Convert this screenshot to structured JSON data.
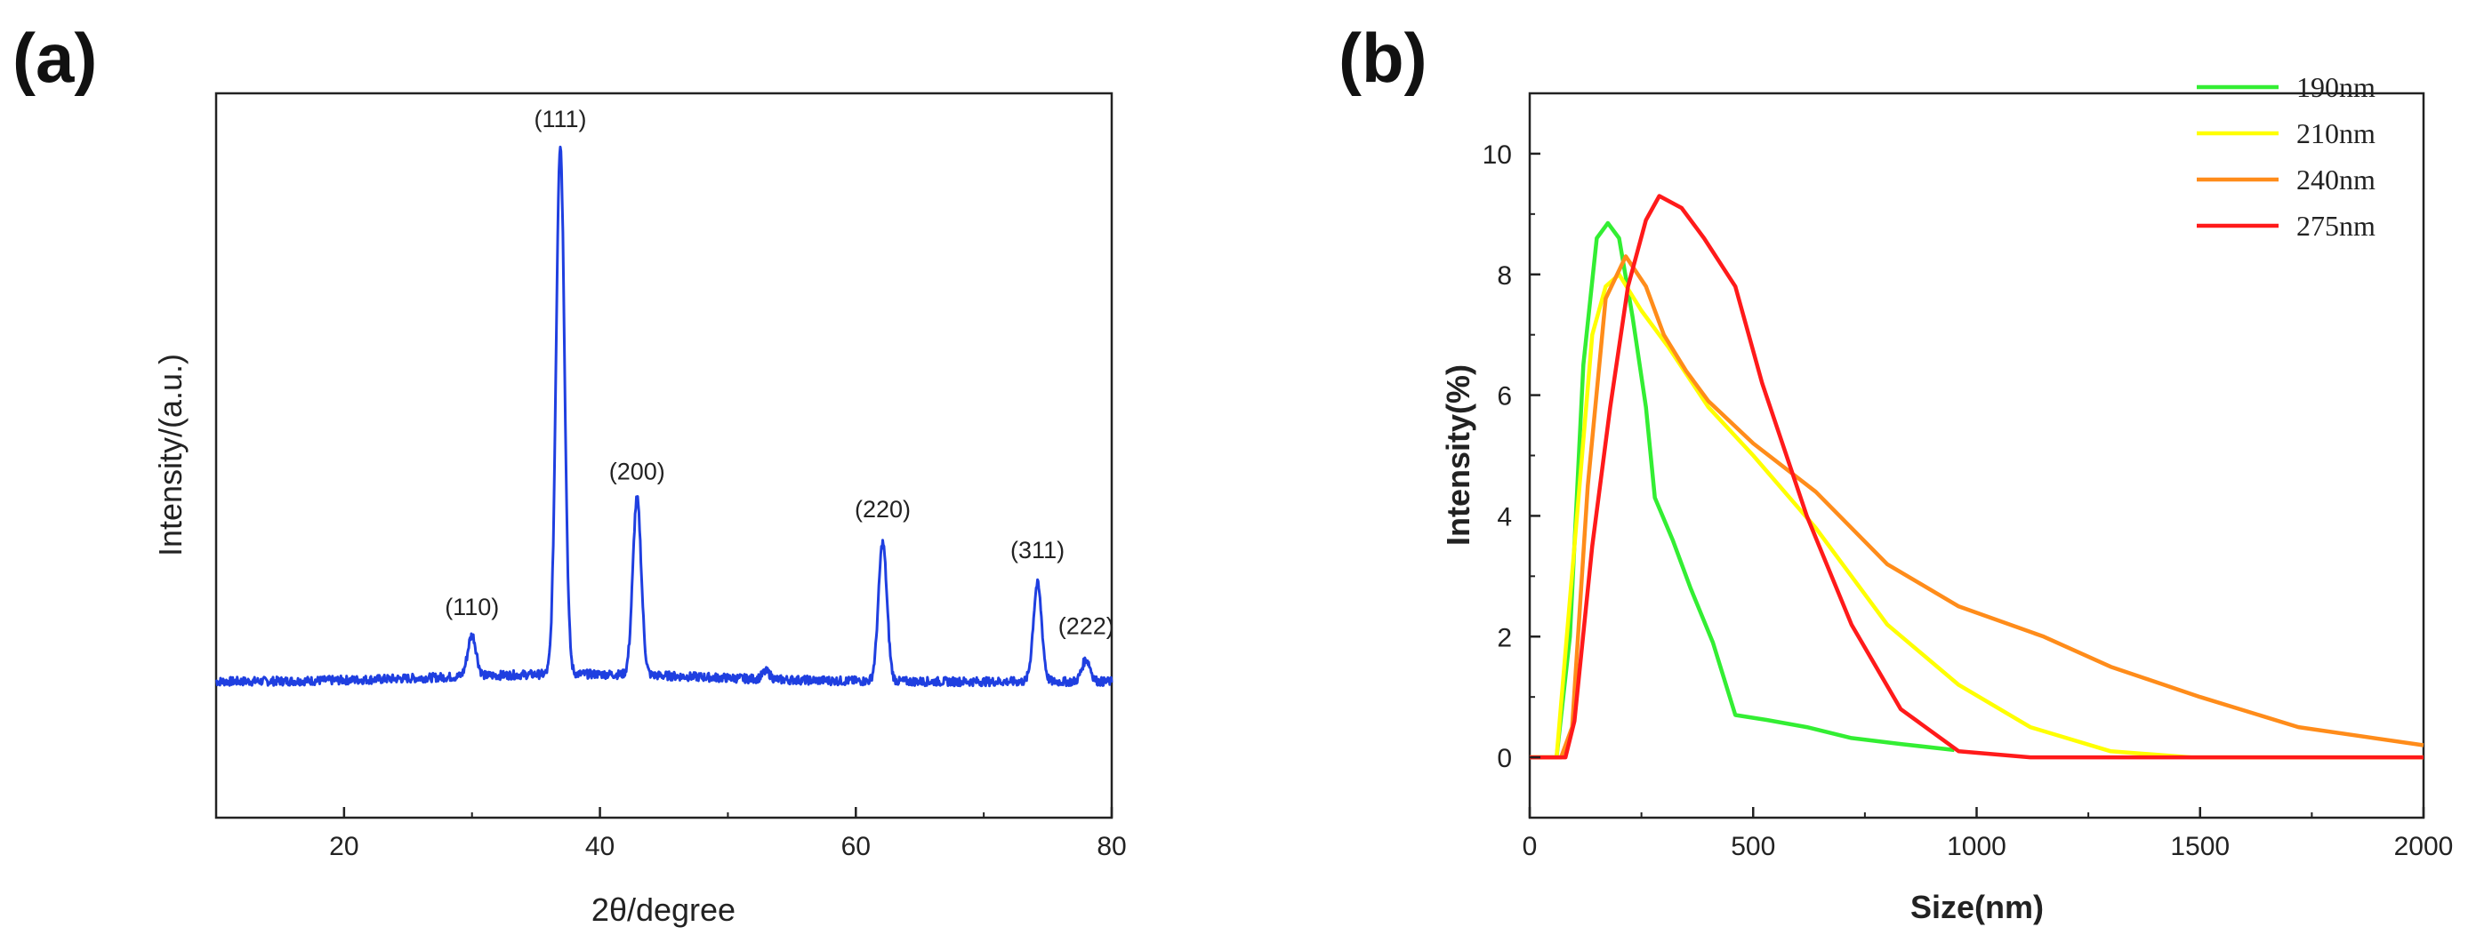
{
  "chart_data": [
    {
      "panel": "(a)",
      "type": "line",
      "xlabel": "2θ/degree",
      "ylabel": "Intensity/(a.u.)",
      "xlim": [
        10,
        80
      ],
      "ylim": [
        0,
        1.15
      ],
      "xticks": [
        20,
        40,
        60,
        80
      ],
      "color": "#1f3fe0",
      "baseline": 0.22,
      "peaks": [
        {
          "label": "(110)",
          "x": 30.0,
          "height": 0.065
        },
        {
          "label": "(111)",
          "x": 36.9,
          "height": 0.84
        },
        {
          "label": "(200)",
          "x": 42.9,
          "height": 0.28
        },
        {
          "label": "(220)",
          "x": 62.1,
          "height": 0.22
        },
        {
          "label": "(311)",
          "x": 74.2,
          "height": 0.155
        },
        {
          "label": "(222)",
          "x": 78.0,
          "height": 0.035
        }
      ]
    },
    {
      "panel": "(b)",
      "type": "line",
      "xlabel": "Size(nm)",
      "ylabel": "Intensity(%)",
      "xlim": [
        0,
        2000
      ],
      "ylim": [
        -1,
        11
      ],
      "xticks": [
        0,
        500,
        1000,
        1500,
        2000
      ],
      "yticks": [
        0,
        2,
        4,
        6,
        8,
        10
      ],
      "legend_position": "top-right",
      "series": [
        {
          "name": "190nm",
          "color": "#33ee33",
          "x": [
            0,
            60,
            90,
            120,
            150,
            175,
            200,
            230,
            260,
            280,
            320,
            360,
            410,
            460,
            530,
            620,
            720,
            830,
            950
          ],
          "y": [
            0,
            0,
            2,
            6.5,
            8.6,
            8.85,
            8.6,
            7.3,
            5.8,
            4.3,
            3.6,
            2.8,
            1.9,
            0.7,
            0.62,
            0.5,
            0.32,
            0.22,
            0.12
          ]
        },
        {
          "name": "210nm",
          "color": "#ffff00",
          "x": [
            0,
            60,
            100,
            140,
            170,
            200,
            250,
            310,
            400,
            500,
            640,
            800,
            960,
            1120,
            1300,
            1480,
            2000
          ],
          "y": [
            0,
            0,
            3.5,
            7.0,
            7.8,
            8.0,
            7.4,
            6.8,
            5.8,
            5.0,
            3.8,
            2.2,
            1.2,
            0.5,
            0.1,
            0,
            0
          ]
        },
        {
          "name": "240nm",
          "color": "#ff8c1a",
          "x": [
            0,
            70,
            95,
            130,
            170,
            215,
            260,
            300,
            350,
            400,
            500,
            640,
            800,
            960,
            1150,
            1300,
            1500,
            1720,
            2000
          ],
          "y": [
            0,
            0,
            0.5,
            4.5,
            7.6,
            8.3,
            7.8,
            7.0,
            6.4,
            5.9,
            5.2,
            4.4,
            3.2,
            2.5,
            2.0,
            1.5,
            1.0,
            0.5,
            0.2
          ]
        },
        {
          "name": "275nm",
          "color": "#ff1a1a",
          "x": [
            0,
            80,
            100,
            140,
            180,
            220,
            260,
            290,
            340,
            390,
            460,
            520,
            620,
            720,
            830,
            960,
            1120,
            1300,
            2000
          ],
          "y": [
            0,
            0,
            0.6,
            3.5,
            5.8,
            7.8,
            8.9,
            9.3,
            9.1,
            8.6,
            7.8,
            6.2,
            4.0,
            2.2,
            0.8,
            0.1,
            0,
            0,
            0
          ]
        }
      ]
    }
  ]
}
